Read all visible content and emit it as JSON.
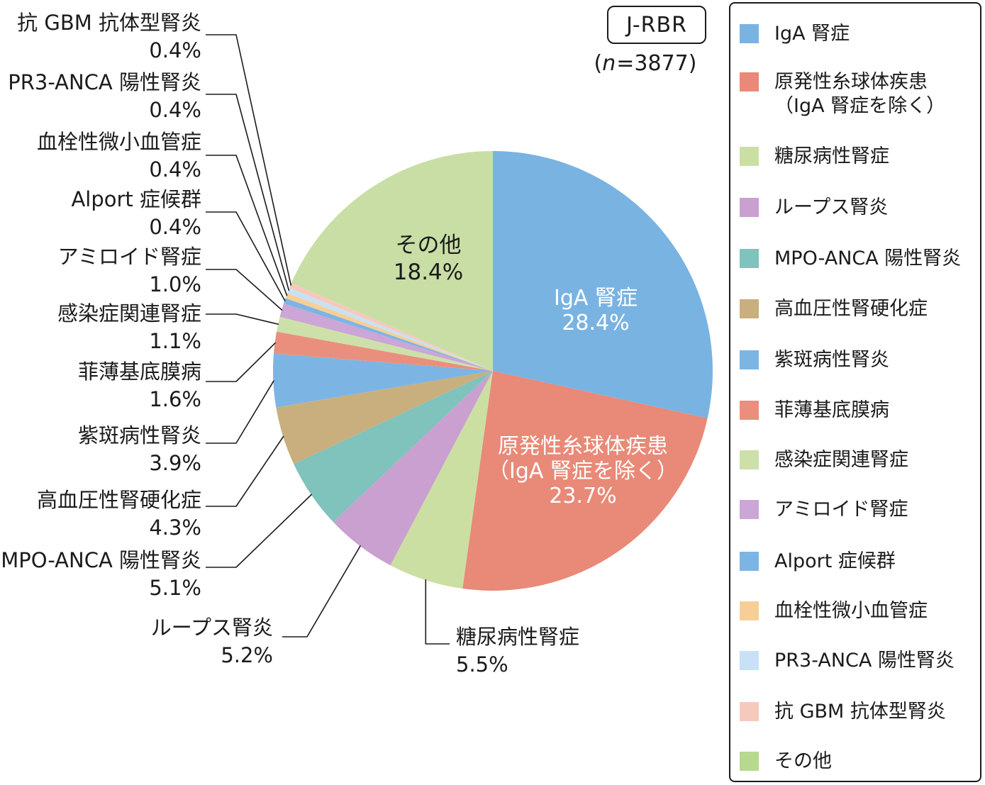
{
  "header": {
    "badge": "J-RBR",
    "sample_prefix": "(",
    "sample_var": "n",
    "sample_suffix": "=3877)"
  },
  "chart_data": {
    "type": "pie",
    "title": "J-RBR",
    "sample_size": 3877,
    "unit": "%",
    "start": "12-oclock",
    "direction": "clockwise",
    "legend_position": "right",
    "series": [
      {
        "label": "IgA 腎症",
        "value": 28.4,
        "pct_label": "28.4%",
        "color": "#79B3E2",
        "label_placement": "inside"
      },
      {
        "label": "原発性糸球体疾患（IgA 腎症を除く）",
        "lines": [
          "原発性糸球体疾患",
          "（IgA 腎症を除く）"
        ],
        "value": 23.7,
        "pct_label": "23.7%",
        "color": "#E98977",
        "label_placement": "inside"
      },
      {
        "label": "糖尿病性腎症",
        "value": 5.5,
        "pct_label": "5.5%",
        "color": "#CBDFA2",
        "label_placement": "callout"
      },
      {
        "label": "ループス腎炎",
        "value": 5.2,
        "pct_label": "5.2%",
        "color": "#C9A0D0",
        "label_placement": "callout"
      },
      {
        "label": "MPO-ANCA 陽性腎炎",
        "value": 5.1,
        "pct_label": "5.1%",
        "color": "#80C2BC",
        "label_placement": "callout"
      },
      {
        "label": "高血圧性腎硬化症",
        "value": 4.3,
        "pct_label": "4.3%",
        "color": "#C9AF7D",
        "label_placement": "callout"
      },
      {
        "label": "紫斑病性腎炎",
        "value": 3.9,
        "pct_label": "3.9%",
        "color": "#7CB5E4",
        "label_placement": "callout"
      },
      {
        "label": "菲薄基底膜病",
        "value": 1.6,
        "pct_label": "1.6%",
        "color": "#EA8F7D",
        "label_placement": "callout"
      },
      {
        "label": "感染症関連腎症",
        "value": 1.1,
        "pct_label": "1.1%",
        "color": "#CDE0A9",
        "label_placement": "callout"
      },
      {
        "label": "アミロイド腎症",
        "value": 1.0,
        "pct_label": "1.0%",
        "color": "#CBA6D6",
        "label_placement": "callout"
      },
      {
        "label": "Alport 症候群",
        "value": 0.4,
        "pct_label": "0.4%",
        "color": "#7CB5E4",
        "label_placement": "callout"
      },
      {
        "label": "血栓性微小血管症",
        "value": 0.4,
        "pct_label": "0.4%",
        "color": "#F6CF97",
        "label_placement": "callout"
      },
      {
        "label": "PR3-ANCA 陽性腎炎",
        "value": 0.4,
        "pct_label": "0.4%",
        "color": "#C8E1F6",
        "label_placement": "callout"
      },
      {
        "label": "抗 GBM 抗体型腎炎",
        "value": 0.4,
        "pct_label": "0.4%",
        "color": "#F6C9BD",
        "label_placement": "callout"
      },
      {
        "label": "その他",
        "value": 18.4,
        "pct_label": "18.4%",
        "color": "#C8DEA5",
        "legend_color": "#B7D88F",
        "label_placement": "inside"
      }
    ]
  }
}
